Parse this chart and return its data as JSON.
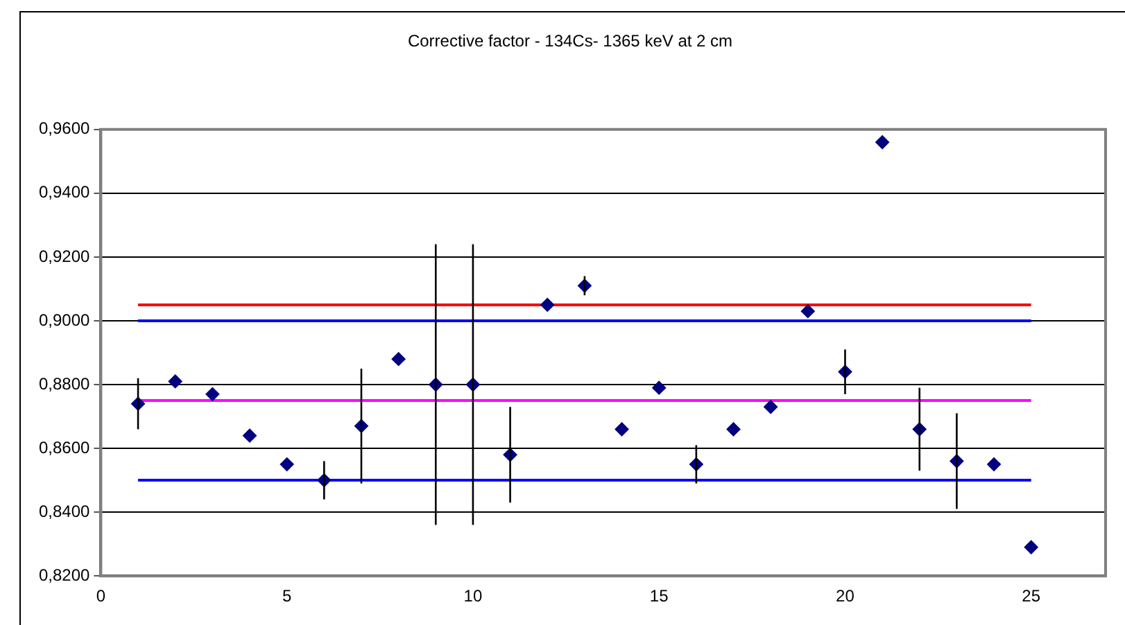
{
  "chart_data": {
    "type": "scatter",
    "title": "Corrective factor - 134Cs- 1365 keV at 2 cm",
    "xlim": [
      0,
      27
    ],
    "xticks": [
      0,
      5,
      10,
      15,
      20,
      25
    ],
    "ylim": [
      0.82,
      0.96
    ],
    "yticks": [
      {
        "value": 0.82,
        "label": "0,8200"
      },
      {
        "value": 0.84,
        "label": "0,8400"
      },
      {
        "value": 0.86,
        "label": "0,8600"
      },
      {
        "value": 0.88,
        "label": "0,8800"
      },
      {
        "value": 0.9,
        "label": "0,9000"
      },
      {
        "value": 0.92,
        "label": "0,9200"
      },
      {
        "value": 0.94,
        "label": "0,9400"
      },
      {
        "value": 0.96,
        "label": "0,9600"
      }
    ],
    "grid": "y",
    "legend": false,
    "series": [
      {
        "marker": "diamond",
        "color": "#000080",
        "x": [
          1,
          2,
          3,
          4,
          5,
          6,
          7,
          8,
          9,
          10,
          11,
          12,
          13,
          14,
          15,
          16,
          17,
          18,
          19,
          20,
          21,
          22,
          23,
          24,
          25
        ],
        "values": [
          0.874,
          0.881,
          0.877,
          0.864,
          0.855,
          0.85,
          0.867,
          0.888,
          0.88,
          0.88,
          0.858,
          0.905,
          0.911,
          0.866,
          0.879,
          0.855,
          0.866,
          0.873,
          0.903,
          0.884,
          0.956,
          0.866,
          0.856,
          0.855,
          0.829
        ],
        "errors": [
          0.008,
          null,
          null,
          null,
          null,
          0.006,
          0.018,
          null,
          0.044,
          0.044,
          0.015,
          null,
          0.003,
          null,
          null,
          0.006,
          null,
          null,
          null,
          0.007,
          null,
          0.013,
          0.015,
          null,
          null
        ]
      },
      {
        "type": "line",
        "marker": "none",
        "color": "#ff0000",
        "x": [
          1,
          25
        ],
        "values": [
          0.905,
          0.905
        ]
      },
      {
        "type": "line",
        "marker": "none",
        "color": "#0000ff",
        "x": [
          1,
          25
        ],
        "values": [
          0.9,
          0.9
        ]
      },
      {
        "type": "line",
        "marker": "none",
        "color": "#ff00ff",
        "x": [
          1,
          25
        ],
        "values": [
          0.875,
          0.875
        ]
      },
      {
        "type": "line",
        "marker": "none",
        "color": "#0000ff",
        "x": [
          1,
          25
        ],
        "values": [
          0.85,
          0.85
        ]
      }
    ]
  }
}
